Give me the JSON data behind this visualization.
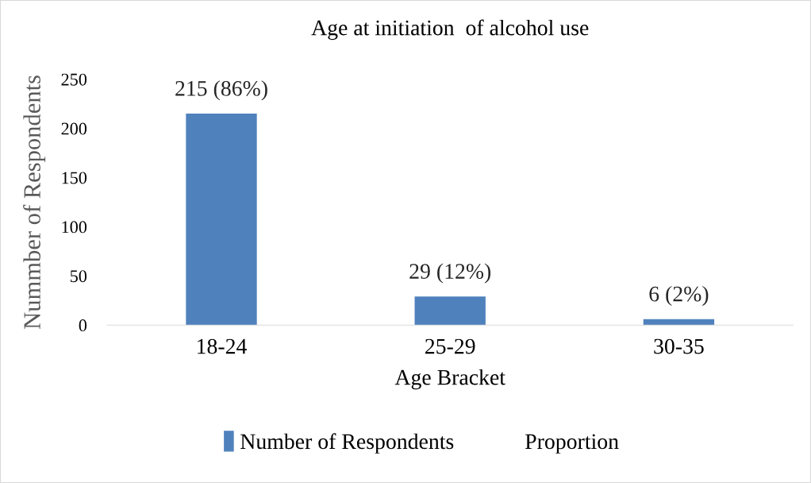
{
  "chart_data": {
    "type": "bar",
    "title": "Age at initiation  of alcohol use",
    "xlabel": "Age Bracket",
    "ylabel": "Nummber of Respondents",
    "categories": [
      "18-24",
      "25-29",
      "30-35"
    ],
    "series": [
      {
        "name": "Number of Respondents",
        "color": "#4f81bd",
        "values": [
          215,
          29,
          6
        ],
        "value_labels": [
          "215 (86%)",
          "29 (12%)",
          "6 (2%)"
        ]
      }
    ],
    "annotations": [
      "Proportion"
    ],
    "ylim": [
      0,
      250
    ],
    "yticks": [
      0,
      50,
      100,
      150,
      200,
      250
    ],
    "grid": false,
    "legend": "bottom"
  }
}
